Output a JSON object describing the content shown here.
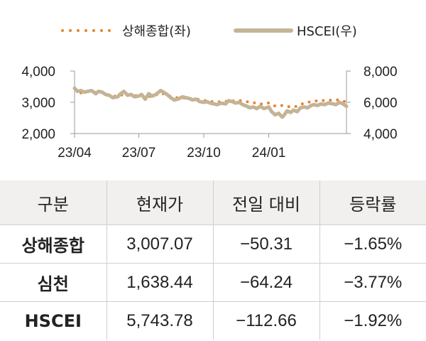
{
  "chart_data": {
    "type": "line",
    "series": [
      {
        "name": "상해종합(좌)",
        "axis": "left",
        "style": "dotted",
        "color": "#e8822c",
        "points": [
          [
            "2023-04-10",
            3300
          ],
          [
            "2023-04-20",
            3360
          ],
          [
            "2023-05-01",
            3320
          ],
          [
            "2023-05-10",
            3340
          ],
          [
            "2023-05-20",
            3200
          ],
          [
            "2023-06-01",
            3200
          ],
          [
            "2023-06-10",
            3250
          ],
          [
            "2023-06-20",
            3220
          ],
          [
            "2023-07-01",
            3210
          ],
          [
            "2023-07-10",
            3200
          ],
          [
            "2023-07-20",
            3180
          ],
          [
            "2023-08-01",
            3300
          ],
          [
            "2023-08-10",
            3230
          ],
          [
            "2023-08-20",
            3150
          ],
          [
            "2023-09-01",
            3140
          ],
          [
            "2023-09-10",
            3120
          ],
          [
            "2023-09-20",
            3110
          ],
          [
            "2023-10-01",
            3060
          ],
          [
            "2023-10-10",
            3030
          ],
          [
            "2023-10-20",
            3010
          ],
          [
            "2023-11-01",
            3030
          ],
          [
            "2023-11-10",
            3040
          ],
          [
            "2023-11-20",
            3060
          ],
          [
            "2023-12-01",
            3020
          ],
          [
            "2023-12-10",
            2990
          ],
          [
            "2023-12-20",
            2940
          ],
          [
            "2024-01-01",
            2980
          ],
          [
            "2024-01-10",
            2880
          ],
          [
            "2024-01-20",
            2900
          ],
          [
            "2024-02-01",
            2850
          ],
          [
            "2024-02-10",
            2870
          ],
          [
            "2024-02-20",
            2980
          ],
          [
            "2024-03-01",
            3020
          ],
          [
            "2024-03-10",
            3050
          ],
          [
            "2024-03-20",
            3060
          ],
          [
            "2024-04-01",
            3070
          ],
          [
            "2024-04-10",
            3080
          ],
          [
            "2024-04-20",
            3007
          ]
        ]
      },
      {
        "name": "HSCEI(우)",
        "axis": "right",
        "style": "solid",
        "color": "#c4b496",
        "points": [
          [
            "2023-04-01",
            6900
          ],
          [
            "2023-04-05",
            6700
          ],
          [
            "2023-04-10",
            6750
          ],
          [
            "2023-04-15",
            6650
          ],
          [
            "2023-04-20",
            6700
          ],
          [
            "2023-04-25",
            6750
          ],
          [
            "2023-05-01",
            6550
          ],
          [
            "2023-05-05",
            6700
          ],
          [
            "2023-05-10",
            6650
          ],
          [
            "2023-05-15",
            6500
          ],
          [
            "2023-05-20",
            6450
          ],
          [
            "2023-05-25",
            6300
          ],
          [
            "2023-06-01",
            6350
          ],
          [
            "2023-06-05",
            6550
          ],
          [
            "2023-06-10",
            6700
          ],
          [
            "2023-06-15",
            6450
          ],
          [
            "2023-06-20",
            6500
          ],
          [
            "2023-06-25",
            6350
          ],
          [
            "2023-07-01",
            6400
          ],
          [
            "2023-07-05",
            6500
          ],
          [
            "2023-07-10",
            6200
          ],
          [
            "2023-07-15",
            6550
          ],
          [
            "2023-07-20",
            6400
          ],
          [
            "2023-07-25",
            6500
          ],
          [
            "2023-08-01",
            6750
          ],
          [
            "2023-08-05",
            6650
          ],
          [
            "2023-08-10",
            6500
          ],
          [
            "2023-08-15",
            6300
          ],
          [
            "2023-08-20",
            6150
          ],
          [
            "2023-08-25",
            6200
          ],
          [
            "2023-09-01",
            6350
          ],
          [
            "2023-09-05",
            6300
          ],
          [
            "2023-09-10",
            6250
          ],
          [
            "2023-09-15",
            6150
          ],
          [
            "2023-09-20",
            6200
          ],
          [
            "2023-09-25",
            6050
          ],
          [
            "2023-10-01",
            6000
          ],
          [
            "2023-10-05",
            6050
          ],
          [
            "2023-10-10",
            5950
          ],
          [
            "2023-10-15",
            5900
          ],
          [
            "2023-10-20",
            5850
          ],
          [
            "2023-10-25",
            5950
          ],
          [
            "2023-11-01",
            5900
          ],
          [
            "2023-11-05",
            6100
          ],
          [
            "2023-11-10",
            6050
          ],
          [
            "2023-11-15",
            5950
          ],
          [
            "2023-11-20",
            6000
          ],
          [
            "2023-11-25",
            5850
          ],
          [
            "2023-12-01",
            5750
          ],
          [
            "2023-12-05",
            5650
          ],
          [
            "2023-12-10",
            5700
          ],
          [
            "2023-12-15",
            5600
          ],
          [
            "2023-12-20",
            5750
          ],
          [
            "2023-12-25",
            5600
          ],
          [
            "2024-01-01",
            5700
          ],
          [
            "2024-01-05",
            5400
          ],
          [
            "2024-01-10",
            5200
          ],
          [
            "2024-01-15",
            5300
          ],
          [
            "2024-01-20",
            5050
          ],
          [
            "2024-01-23",
            5200
          ],
          [
            "2024-01-27",
            5450
          ],
          [
            "2024-02-01",
            5350
          ],
          [
            "2024-02-05",
            5500
          ],
          [
            "2024-02-10",
            5400
          ],
          [
            "2024-02-15",
            5650
          ],
          [
            "2024-02-20",
            5700
          ],
          [
            "2024-02-25",
            5650
          ],
          [
            "2024-03-01",
            5800
          ],
          [
            "2024-03-05",
            5850
          ],
          [
            "2024-03-10",
            5800
          ],
          [
            "2024-03-15",
            5900
          ],
          [
            "2024-03-20",
            5850
          ],
          [
            "2024-03-25",
            5950
          ],
          [
            "2024-04-01",
            5900
          ],
          [
            "2024-04-05",
            5850
          ],
          [
            "2024-04-10",
            6000
          ],
          [
            "2024-04-15",
            5900
          ],
          [
            "2024-04-20",
            5744
          ]
        ]
      }
    ],
    "x_range": [
      "2023-04-01",
      "2024-04-20"
    ],
    "x_ticks": [
      {
        "date": "2023-04-01",
        "label": "23/04"
      },
      {
        "date": "2023-07-01",
        "label": "23/07"
      },
      {
        "date": "2023-10-01",
        "label": "23/10"
      },
      {
        "date": "2024-01-01",
        "label": "24/01"
      }
    ],
    "y_left": {
      "range": [
        2000,
        4000
      ],
      "ticks": [
        4000,
        3000,
        2000
      ],
      "labels": [
        "4,000",
        "3,000",
        "2,000"
      ]
    },
    "y_right": {
      "range": [
        4000,
        8000
      ],
      "ticks": [
        8000,
        6000,
        4000
      ],
      "labels": [
        "8,000",
        "6,000",
        "4,000"
      ]
    },
    "legend_position": "top"
  },
  "table": {
    "headers": [
      "구분",
      "현재가",
      "전일 대비",
      "등락률"
    ],
    "rows": [
      {
        "name": "상해종합",
        "price": "3,007.07",
        "change": "−50.31",
        "rate": "−1.65%"
      },
      {
        "name": "심천",
        "price": "1,638.44",
        "change": "−64.24",
        "rate": "−3.77%"
      },
      {
        "name": "HSCEI",
        "price": "5,743.78",
        "change": "−112.66",
        "rate": "−1.92%"
      }
    ]
  }
}
